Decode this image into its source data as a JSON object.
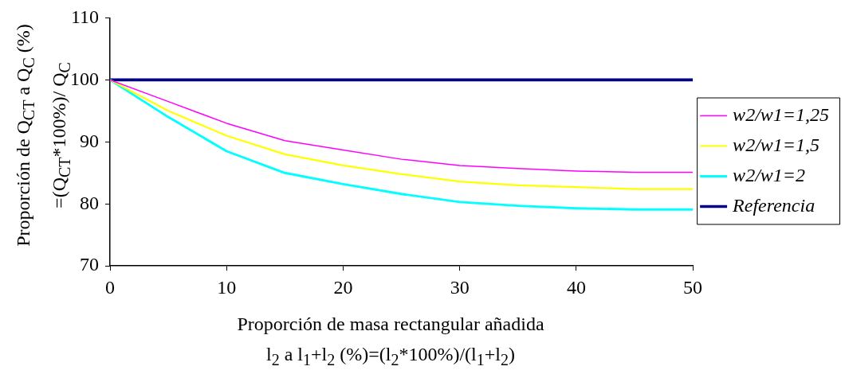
{
  "chart_data": {
    "type": "line",
    "ylabel": "Proporción de Q$_{CT}$ a Q$_{C}$ (%)\n=(Q$_{CT}$*100%)/ Q$_{C}$",
    "xlabel": "Proporción de masa rectangular añadida\nl$_{2}$ a l$_{1}$+l$_{2}$ (%)=(l$_{2}$*100%)/(l$_{1}$+l$_{2}$)",
    "x": [
      0,
      5,
      10,
      15,
      20,
      25,
      30,
      35,
      40,
      45,
      50
    ],
    "series": [
      {
        "name": "w2/w1=1,25",
        "color": "#ff00ff",
        "values": [
          100,
          96.5,
          93,
          90.2,
          88.7,
          87.2,
          86.2,
          85.7,
          85.3,
          85.1,
          85.1
        ]
      },
      {
        "name": "w2/w1=1,5",
        "color": "#ffff00",
        "values": [
          100,
          95,
          91,
          88,
          86.2,
          84.8,
          83.6,
          83,
          82.7,
          82.4,
          82.4
        ]
      },
      {
        "name": "w2/w1=2",
        "color": "#00ffff",
        "values": [
          100,
          94,
          88.5,
          85,
          83.2,
          81.6,
          80.3,
          79.7,
          79.3,
          79.1,
          79.1
        ]
      },
      {
        "name": "Referencia",
        "color": "#000080",
        "values": [
          100,
          100,
          100,
          100,
          100,
          100,
          100,
          100,
          100,
          100,
          100
        ]
      }
    ],
    "xlim": [
      0,
      50
    ],
    "xticks": [
      0,
      10,
      20,
      30,
      40,
      50
    ],
    "ylim": [
      70,
      110
    ],
    "yticks": [
      70,
      80,
      90,
      100,
      110
    ],
    "grid": false,
    "legend": "right",
    "marker": "none",
    "line_style": "solid"
  }
}
